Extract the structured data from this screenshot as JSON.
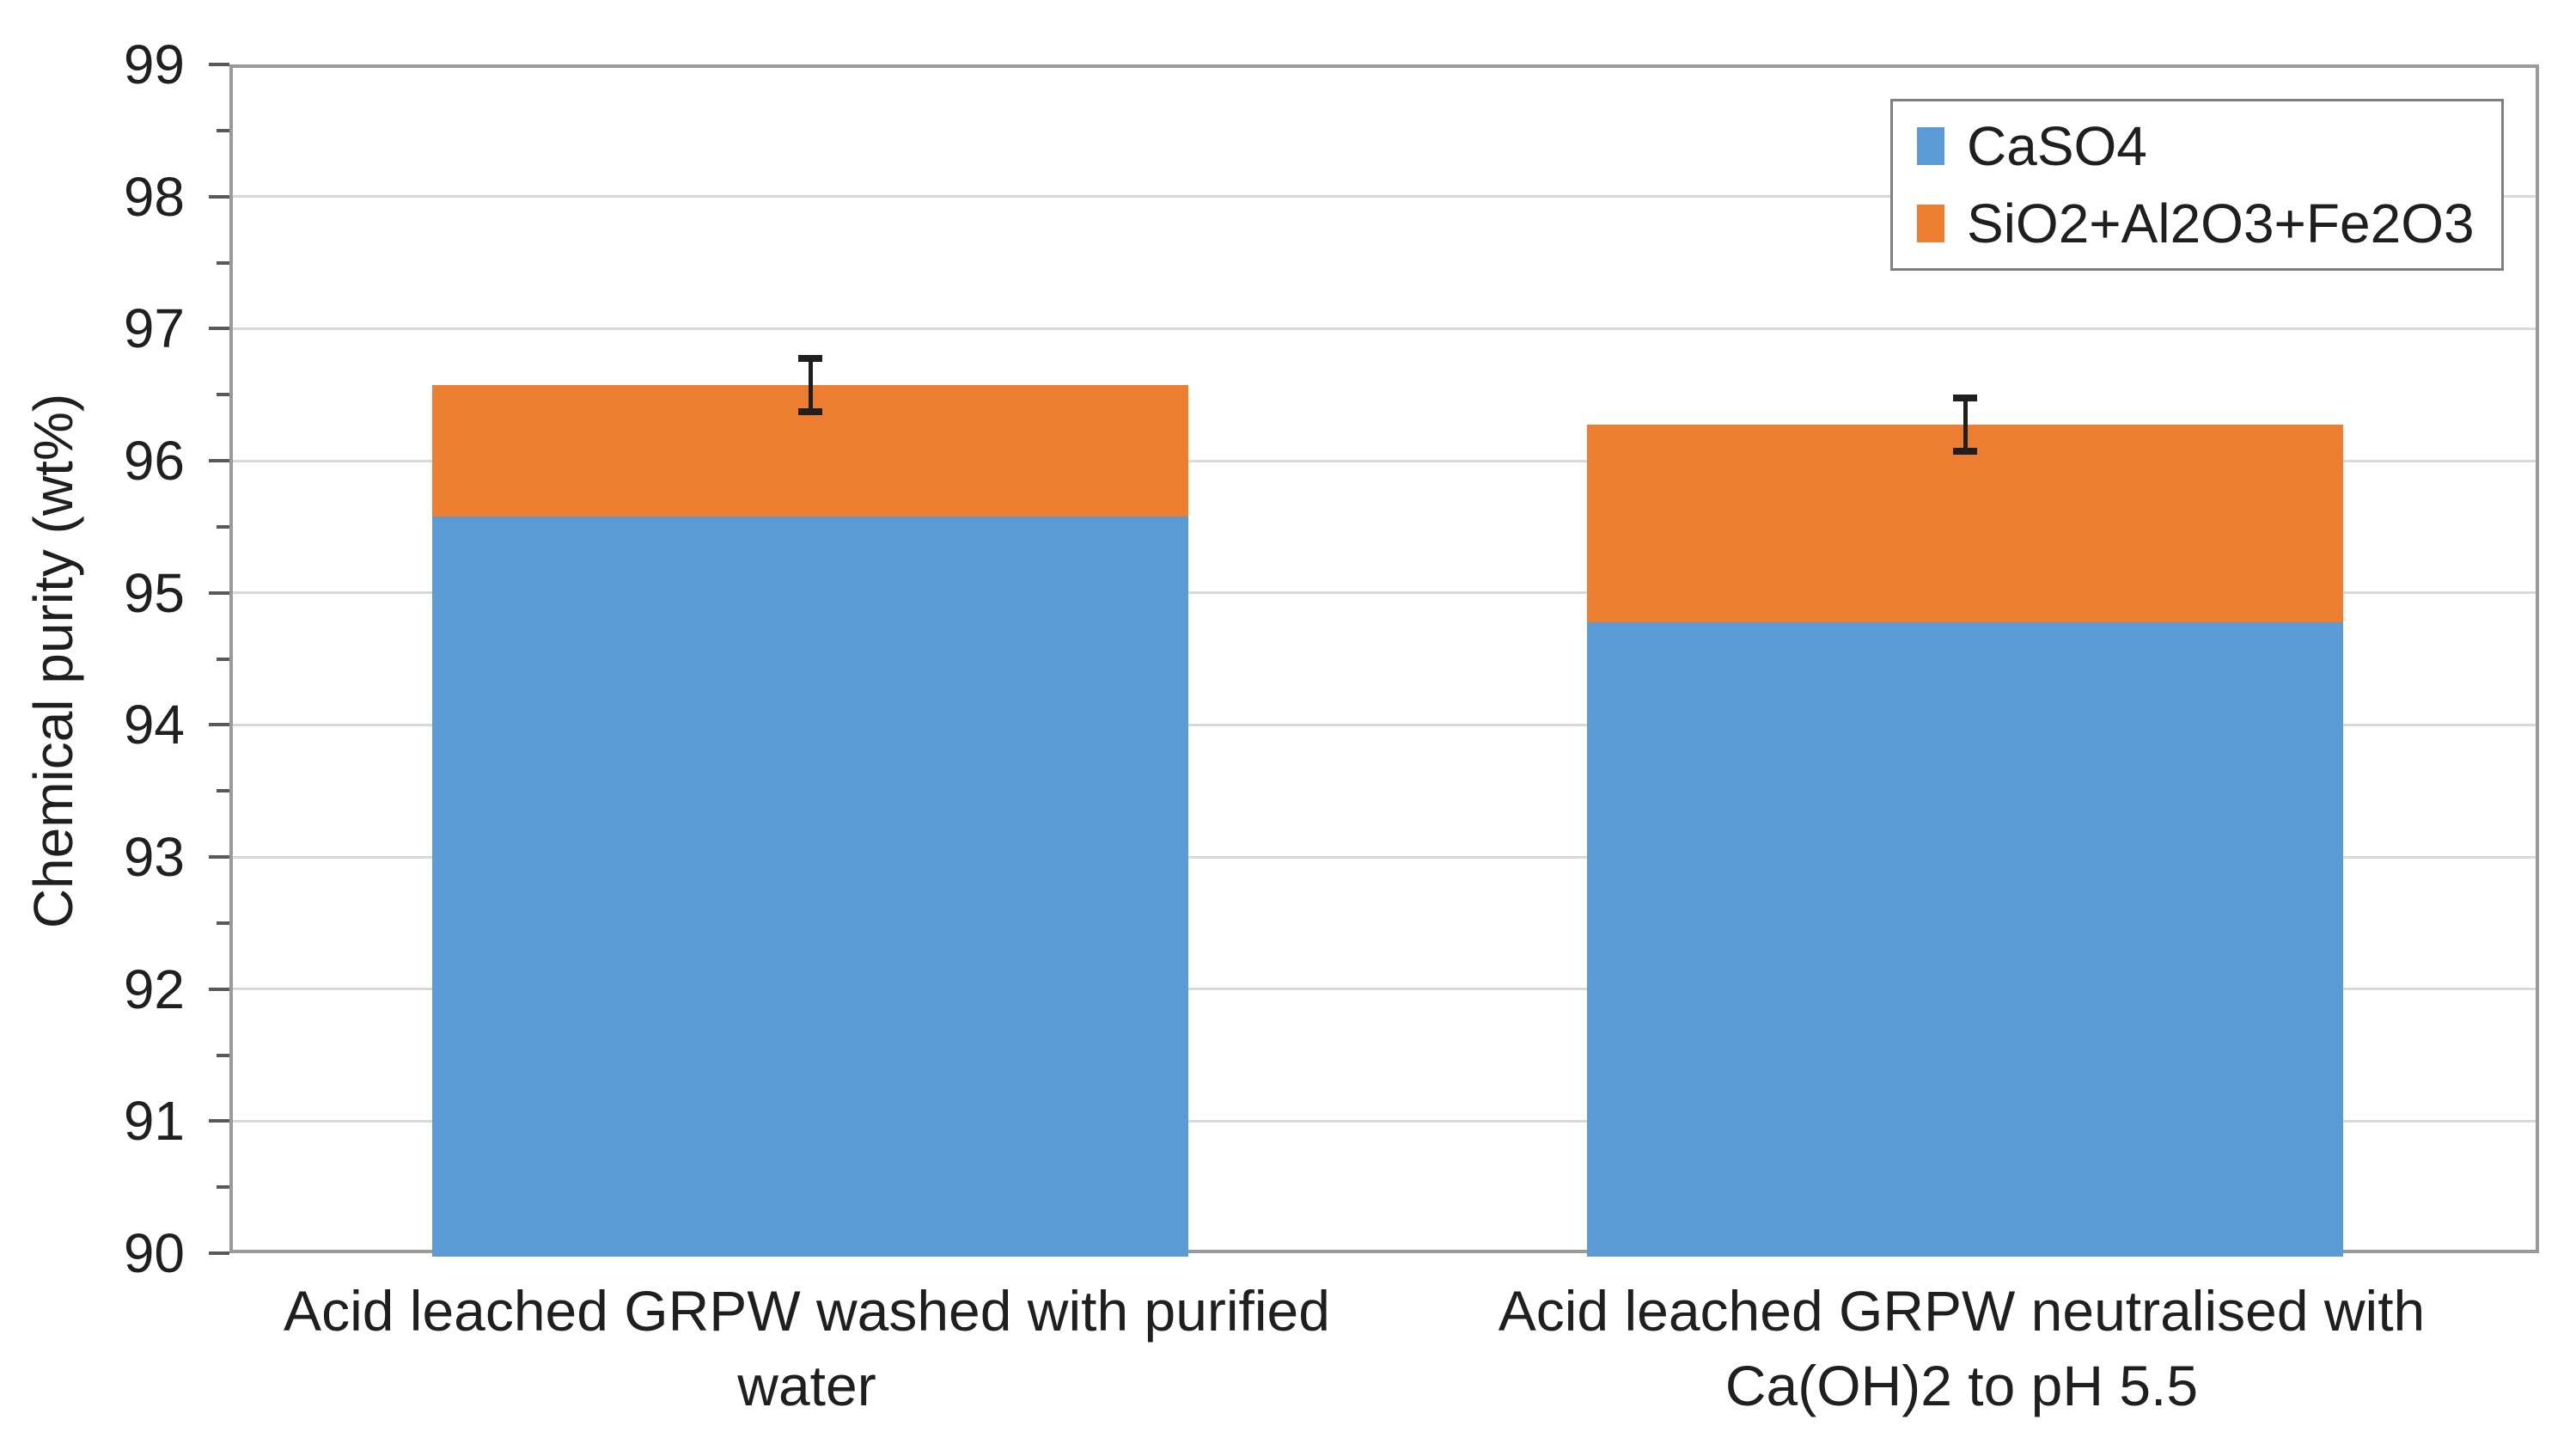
{
  "chart_data": {
    "type": "bar",
    "stacked": true,
    "title": "",
    "xlabel": "",
    "ylabel": "Chemical purity (wt%)",
    "ylim": [
      90,
      99
    ],
    "ytick_step": 1,
    "yminor_step": 0.5,
    "grid": "horizontal-major",
    "legend_position": "top-right",
    "categories": [
      "Acid leached GRPW washed with purified\nwater",
      "Acid leached GRPW neutralised with\nCa(OH)2 to pH 5.5"
    ],
    "series": [
      {
        "name": "CaSO4",
        "color": "#5B9BD5",
        "values": [
          95.6,
          94.8
        ]
      },
      {
        "name": "SiO2+Al2O3+Fe2O3",
        "color": "#ED7D31",
        "values": [
          1.0,
          1.5
        ]
      }
    ],
    "totals": [
      96.6,
      96.3
    ],
    "error_bars": {
      "applies_to": "stack-total",
      "plus_minus": [
        0.2,
        0.2
      ]
    }
  },
  "axis": {
    "yticks": [
      "99",
      "98",
      "97",
      "96",
      "95",
      "94",
      "93",
      "92",
      "91",
      "90"
    ]
  },
  "colors": {
    "gridline": "#d9d9d9",
    "plot_border": "#9a9a9a",
    "tick": "#595959",
    "error_bar": "#1f1f1f",
    "text": "#1f1f1f"
  }
}
